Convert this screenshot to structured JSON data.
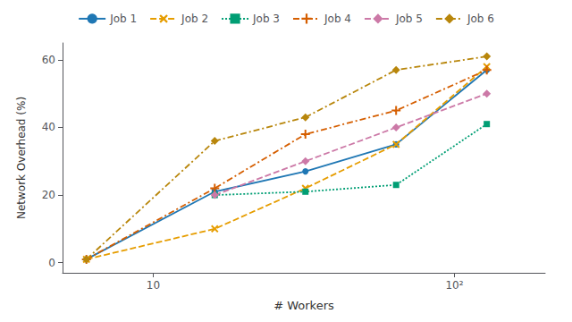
{
  "chart_data": {
    "type": "line",
    "xlabel": "# Workers",
    "ylabel": "Network Overhead (%)",
    "x": [
      6,
      16,
      32,
      64,
      128
    ],
    "series": [
      {
        "name": "Job 1",
        "color": "#1f77b4",
        "marker": "circle",
        "line_style": "solid",
        "values": [
          1,
          21,
          27,
          35,
          57
        ]
      },
      {
        "name": "Job 2",
        "color": "#e69d00",
        "marker": "x",
        "line_style": "dashed",
        "values": [
          1,
          10,
          22,
          35,
          58
        ]
      },
      {
        "name": "Job 3",
        "color": "#009e74",
        "marker": "square",
        "line_style": "dotted",
        "values": [
          null,
          20,
          21,
          23,
          41
        ]
      },
      {
        "name": "Job 4",
        "color": "#d55e00",
        "marker": "plus",
        "line_style": "dashdot",
        "values": [
          1,
          22,
          38,
          45,
          57
        ]
      },
      {
        "name": "Job 5",
        "color": "#cc79a7",
        "marker": "diamond",
        "line_style": "dashed",
        "values": [
          null,
          20,
          30,
          40,
          50
        ]
      },
      {
        "name": "Job 6",
        "color": "#b8860b",
        "marker": "diamond",
        "line_style": "dashdot",
        "values": [
          1,
          36,
          43,
          57,
          61
        ]
      }
    ],
    "log": "x",
    "xlim": [
      5,
      200
    ],
    "xticks": [
      10,
      {
        "value": 100,
        "label": "10²"
      }
    ],
    "ylim": [
      -3,
      65
    ],
    "yticks": [
      0,
      20,
      40,
      60
    ],
    "grid": false,
    "legend": "top"
  }
}
